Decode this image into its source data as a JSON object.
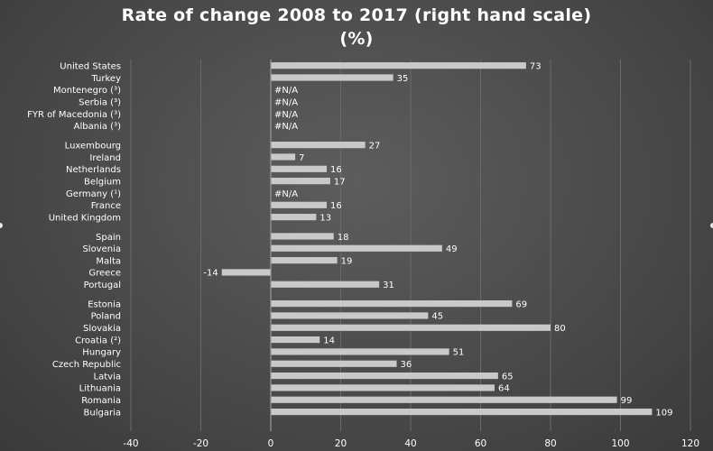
{
  "chart_data": {
    "type": "bar",
    "orientation": "horizontal",
    "title_lines": [
      "Rate of change 2008 to 2017 (right hand scale)",
      "(%)"
    ],
    "xlim": [
      -40,
      120
    ],
    "x_ticks": [
      -40,
      -20,
      0,
      20,
      40,
      60,
      80,
      100,
      120
    ],
    "grid": true,
    "colors": {
      "bar": "#c9c9c9",
      "grid": "#6a6a6a",
      "text": "#ffffff"
    },
    "groups": [
      {
        "categories": [
          "United States",
          "Turkey",
          "Montenegro (³)",
          "Serbia (³)",
          "FYR of Macedonia (³)",
          "Albania (³)"
        ],
        "values": [
          73,
          35,
          null,
          null,
          null,
          null
        ],
        "labels": [
          "73",
          "35",
          "#N/A",
          "#N/A",
          "#N/A",
          "#N/A"
        ]
      },
      {
        "categories": [
          "Luxembourg",
          "Ireland",
          "Netherlands",
          "Belgium",
          "Germany (¹)",
          "France",
          "United Kingdom"
        ],
        "values": [
          27,
          7,
          16,
          17,
          null,
          16,
          13
        ],
        "labels": [
          "27",
          "7",
          "16",
          "17",
          "#N/A",
          "16",
          "13"
        ]
      },
      {
        "categories": [
          "Spain",
          "Slovenia",
          "Malta",
          "Greece",
          "Portugal"
        ],
        "values": [
          18,
          49,
          19,
          -14,
          31
        ],
        "labels": [
          "18",
          "49",
          "19",
          "-14",
          "31"
        ]
      },
      {
        "categories": [
          "Estonia",
          "Poland",
          "Slovakia",
          "Croatia (²)",
          "Hungary",
          "Czech Republic",
          "Latvia",
          "Lithuania",
          "Romania",
          "Bulgaria"
        ],
        "values": [
          69,
          45,
          80,
          14,
          51,
          36,
          65,
          64,
          99,
          109
        ],
        "labels": [
          "69",
          "45",
          "80",
          "14",
          "51",
          "36",
          "65",
          "64",
          "99",
          "109"
        ]
      }
    ]
  }
}
